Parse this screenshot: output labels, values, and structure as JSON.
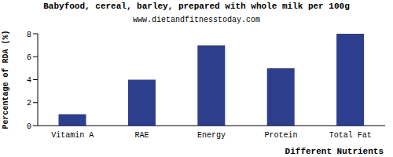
{
  "chart_data": {
    "type": "bar",
    "title": "Babyfood, cereal, barley, prepared with whole milk per 100g",
    "subtitle": "www.dietandfitnesstoday.com",
    "x_label": "Different Nutrients",
    "y_label": "Percentage of RDA (%)",
    "categories": [
      "Vitamin A",
      "RAE",
      "Energy",
      "Protein",
      "Total Fat"
    ],
    "values": [
      1,
      4,
      7,
      5,
      8
    ],
    "color": "#2d3e8e",
    "ylim": [
      0,
      8
    ],
    "yticks": [
      0,
      2,
      4,
      6,
      8
    ],
    "grid": false
  }
}
